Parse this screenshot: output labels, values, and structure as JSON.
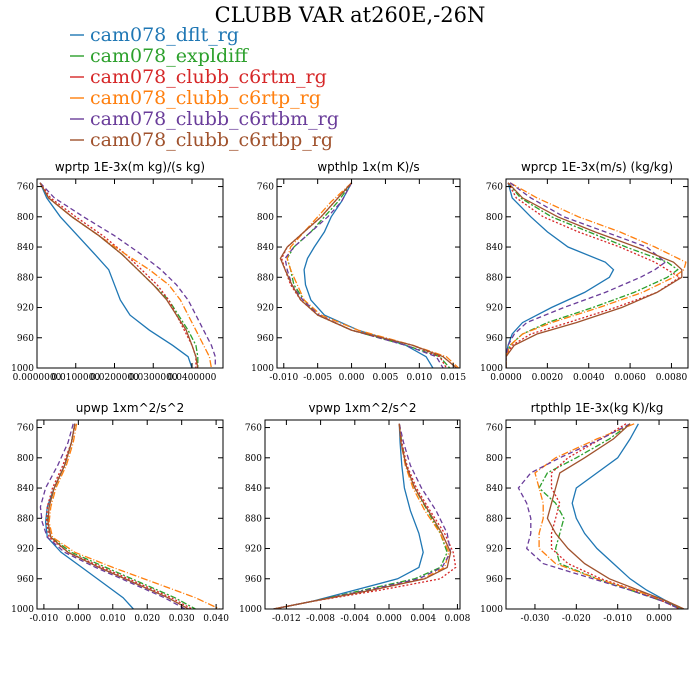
{
  "title": "CLUBB VAR at260E,-26N",
  "legend": [
    {
      "name": "cam078_dflt_rg",
      "color": "#1f77b4",
      "dash": ""
    },
    {
      "name": "cam078_expldiff",
      "color": "#2ca02c",
      "dash": "6,2,2,2"
    },
    {
      "name": "cam078_clubb_c6rtm_rg",
      "color": "#d62728",
      "dash": "2,2"
    },
    {
      "name": "cam078_clubb_c6rtp_rg",
      "color": "#ff7f0e",
      "dash": "7,2,1,2"
    },
    {
      "name": "cam078_clubb_c6rtbm_rg",
      "color": "#6a3d9a",
      "dash": "5,3"
    },
    {
      "name": "cam078_clubb_c6rtbp_rg",
      "color": "#a0522d",
      "dash": ""
    }
  ],
  "chart_data": [
    {
      "type": "line",
      "title": "wprtp  1E-3x(m kg)/(s kg)",
      "xlim": [
        0,
        0.048
      ],
      "ylim": [
        1000,
        750
      ],
      "xticks": [
        0,
        0.01,
        0.02,
        0.03,
        0.04
      ],
      "xticklabels": [
        "0.0000000",
        "0.0100000",
        "0.0200000",
        "0.0300000",
        "0.0400000"
      ],
      "yticks": [
        760,
        800,
        840,
        880,
        920,
        960,
        1000
      ],
      "y": [
        755,
        775,
        800,
        825,
        850,
        870,
        890,
        910,
        930,
        950,
        970,
        985,
        1000
      ],
      "series": [
        {
          "name": "cam078_dflt_rg",
          "values": [
            0.0008,
            0.0025,
            0.006,
            0.0105,
            0.015,
            0.0185,
            0.02,
            0.0215,
            0.024,
            0.029,
            0.035,
            0.039,
            0.04
          ]
        },
        {
          "name": "cam078_expldiff",
          "values": [
            0.0008,
            0.003,
            0.009,
            0.016,
            0.022,
            0.026,
            0.03,
            0.034,
            0.0365,
            0.039,
            0.041,
            0.0415,
            0.0415
          ]
        },
        {
          "name": "cam078_clubb_c6rtm_rg",
          "values": [
            0.0008,
            0.0035,
            0.01,
            0.017,
            0.023,
            0.027,
            0.031,
            0.034,
            0.036,
            0.038,
            0.04,
            0.041,
            0.041
          ]
        },
        {
          "name": "cam078_clubb_c6rtp_rg",
          "values": [
            0.0008,
            0.003,
            0.009,
            0.016,
            0.023,
            0.029,
            0.034,
            0.037,
            0.039,
            0.041,
            0.043,
            0.0445,
            0.045
          ]
        },
        {
          "name": "cam078_clubb_c6rtbm_rg",
          "values": [
            0.0008,
            0.0045,
            0.012,
            0.02,
            0.027,
            0.032,
            0.036,
            0.039,
            0.041,
            0.043,
            0.045,
            0.046,
            0.046
          ]
        },
        {
          "name": "cam078_clubb_c6rtbp_rg",
          "values": [
            0.0008,
            0.003,
            0.009,
            0.016,
            0.022,
            0.026,
            0.03,
            0.0335,
            0.036,
            0.0385,
            0.04,
            0.041,
            0.0415
          ]
        }
      ]
    },
    {
      "type": "line",
      "title": "wpthlp  1x(m K)/s",
      "xlim": [
        -0.011,
        0.016
      ],
      "ylim": [
        1000,
        750
      ],
      "xticks": [
        -0.01,
        -0.005,
        0,
        0.005,
        0.01,
        0.015
      ],
      "xticklabels": [
        "-0.010",
        "-0.005",
        "0.000",
        "0.005",
        "0.010",
        "0.015"
      ],
      "yticks": [
        760,
        800,
        840,
        880,
        920,
        960,
        1000
      ],
      "y": [
        755,
        780,
        800,
        820,
        840,
        855,
        870,
        890,
        910,
        930,
        950,
        970,
        985,
        1000
      ],
      "series": [
        {
          "name": "cam078_dflt_rg",
          "values": [
            0,
            -0.0015,
            -0.003,
            -0.004,
            -0.0055,
            -0.0065,
            -0.007,
            -0.0068,
            -0.006,
            -0.004,
            0.001,
            0.008,
            0.011,
            0.012
          ]
        },
        {
          "name": "cam078_expldiff",
          "values": [
            0,
            -0.002,
            -0.004,
            -0.006,
            -0.0085,
            -0.0095,
            -0.009,
            -0.0085,
            -0.007,
            -0.005,
            0,
            0.008,
            0.013,
            0.0145
          ]
        },
        {
          "name": "cam078_clubb_c6rtm_rg",
          "values": [
            0,
            -0.0025,
            -0.0045,
            -0.007,
            -0.0095,
            -0.0103,
            -0.0098,
            -0.009,
            -0.0075,
            -0.005,
            0,
            0.009,
            0.013,
            0.014
          ]
        },
        {
          "name": "cam078_clubb_c6rtp_rg",
          "values": [
            0,
            -0.003,
            -0.005,
            -0.007,
            -0.009,
            -0.0095,
            -0.009,
            -0.008,
            -0.007,
            -0.0045,
            0.001,
            0.009,
            0.014,
            0.0158
          ]
        },
        {
          "name": "cam078_clubb_c6rtbm_rg",
          "values": [
            0,
            -0.0015,
            -0.0035,
            -0.006,
            -0.0085,
            -0.0098,
            -0.0095,
            -0.0088,
            -0.0072,
            -0.0048,
            0,
            0.008,
            0.0125,
            0.0135
          ]
        },
        {
          "name": "cam078_clubb_c6rtbp_rg",
          "values": [
            0,
            -0.0025,
            -0.0045,
            -0.007,
            -0.0095,
            -0.0105,
            -0.0098,
            -0.0088,
            -0.0075,
            -0.005,
            0,
            0.009,
            0.0135,
            0.0155
          ]
        }
      ]
    },
    {
      "type": "line",
      "title": "wprcp  1E-3x(m/s) (kg/kg)",
      "xlim": [
        0,
        0.0088
      ],
      "ylim": [
        1000,
        750
      ],
      "xticks": [
        0,
        0.002,
        0.004,
        0.006,
        0.008
      ],
      "xticklabels": [
        "0.0000",
        "0.0020",
        "0.0040",
        "0.0060",
        "0.0080"
      ],
      "yticks": [
        760,
        800,
        840,
        880,
        920,
        960,
        1000
      ],
      "y": [
        755,
        775,
        800,
        820,
        840,
        860,
        870,
        880,
        900,
        920,
        940,
        955,
        970,
        985,
        1000
      ],
      "series": [
        {
          "name": "cam078_dflt_rg",
          "values": [
            0.0001,
            0.0003,
            0.0012,
            0.002,
            0.003,
            0.0048,
            0.0052,
            0.005,
            0.0038,
            0.0022,
            0.0008,
            0.0003,
            0.0001,
            0,
            0
          ]
        },
        {
          "name": "cam078_expldiff",
          "values": [
            0.0001,
            0.0007,
            0.0022,
            0.004,
            0.0058,
            0.0078,
            0.0083,
            0.0078,
            0.0062,
            0.0042,
            0.002,
            0.0008,
            0.0002,
            0,
            0
          ]
        },
        {
          "name": "cam078_clubb_c6rtm_rg",
          "values": [
            0.0001,
            0.0005,
            0.0018,
            0.0035,
            0.0055,
            0.0072,
            0.0078,
            0.0084,
            0.0073,
            0.0053,
            0.003,
            0.0012,
            0.0003,
            0,
            0
          ]
        },
        {
          "name": "cam078_clubb_c6rtp_rg",
          "values": [
            0.0002,
            0.0015,
            0.0035,
            0.0055,
            0.0072,
            0.0087,
            0.0086,
            0.0081,
            0.0066,
            0.0045,
            0.0022,
            0.0008,
            0.0002,
            0,
            0
          ]
        },
        {
          "name": "cam078_clubb_c6rtbm_rg",
          "values": [
            0.0002,
            0.0012,
            0.0028,
            0.0048,
            0.0068,
            0.0077,
            0.0072,
            0.0065,
            0.0048,
            0.0028,
            0.001,
            0.0004,
            0.0001,
            0,
            0
          ]
        },
        {
          "name": "cam078_clubb_c6rtbp_rg",
          "values": [
            0.0001,
            0.0008,
            0.0025,
            0.0043,
            0.0063,
            0.0081,
            0.0085,
            0.0085,
            0.0073,
            0.0056,
            0.0034,
            0.0015,
            0.0004,
            0,
            0
          ]
        }
      ]
    },
    {
      "type": "line",
      "title": "upwp  1xm^2/s^2",
      "xlim": [
        -0.012,
        0.042
      ],
      "ylim": [
        1000,
        750
      ],
      "xticks": [
        -0.01,
        0,
        0.01,
        0.02,
        0.03,
        0.04
      ],
      "xticklabels": [
        "-0.010",
        "0.000",
        "0.010",
        "0.020",
        "0.030",
        "0.040"
      ],
      "yticks": [
        760,
        800,
        840,
        880,
        920,
        960,
        1000
      ],
      "y": [
        755,
        780,
        810,
        840,
        865,
        885,
        905,
        925,
        945,
        965,
        985,
        1000
      ],
      "series": [
        {
          "name": "cam078_dflt_rg",
          "values": [
            -0.001,
            -0.002,
            -0.004,
            -0.007,
            -0.009,
            -0.0095,
            -0.009,
            -0.005,
            0.001,
            0.007,
            0.013,
            0.016
          ]
        },
        {
          "name": "cam078_expldiff",
          "values": [
            -0.001,
            -0.002,
            -0.004,
            -0.007,
            -0.0085,
            -0.009,
            -0.008,
            -0.002,
            0.008,
            0.018,
            0.028,
            0.034
          ]
        },
        {
          "name": "cam078_clubb_c6rtm_rg",
          "values": [
            -0.001,
            -0.002,
            -0.0045,
            -0.0075,
            -0.009,
            -0.0092,
            -0.0085,
            -0.003,
            0.007,
            0.017,
            0.027,
            0.033
          ]
        },
        {
          "name": "cam078_clubb_c6rtp_rg",
          "values": [
            -0.0005,
            -0.0015,
            -0.0035,
            -0.0065,
            -0.008,
            -0.0085,
            -0.0075,
            -0.001,
            0.01,
            0.022,
            0.034,
            0.041
          ]
        },
        {
          "name": "cam078_clubb_c6rtbm_rg",
          "values": [
            -0.0015,
            -0.003,
            -0.006,
            -0.0095,
            -0.011,
            -0.0105,
            -0.009,
            -0.004,
            0.005,
            0.015,
            0.025,
            0.031
          ]
        },
        {
          "name": "cam078_clubb_c6rtbp_rg",
          "values": [
            -0.001,
            -0.002,
            -0.004,
            -0.007,
            -0.0085,
            -0.0088,
            -0.008,
            -0.003,
            0.006,
            0.016,
            0.026,
            0.032
          ]
        }
      ]
    },
    {
      "type": "line",
      "title": "vpwp  1xm^2/s^2",
      "xlim": [
        -0.0145,
        0.0083
      ],
      "ylim": [
        1000,
        750
      ],
      "xticks": [
        -0.012,
        -0.008,
        -0.004,
        0,
        0.004,
        0.008
      ],
      "xticklabels": [
        "-0.012",
        "-0.008",
        "-0.004",
        "0.000",
        "0.004",
        "0.008"
      ],
      "yticks": [
        760,
        800,
        840,
        880,
        920,
        960,
        1000
      ],
      "y": [
        755,
        780,
        810,
        840,
        870,
        900,
        925,
        945,
        960,
        975,
        990,
        1000
      ],
      "series": [
        {
          "name": "cam078_dflt_rg",
          "values": [
            0.0012,
            0.0013,
            0.0015,
            0.0018,
            0.0025,
            0.0035,
            0.004,
            0.0035,
            0.001,
            -0.004,
            -0.009,
            -0.0135
          ]
        },
        {
          "name": "cam078_expldiff",
          "values": [
            0.0012,
            0.0015,
            0.002,
            0.003,
            0.0045,
            0.006,
            0.0068,
            0.006,
            0.003,
            -0.003,
            -0.009,
            -0.0135
          ]
        },
        {
          "name": "cam078_clubb_c6rtm_rg",
          "values": [
            0.0012,
            0.0015,
            0.0021,
            0.0032,
            0.0048,
            0.0065,
            0.0075,
            0.0078,
            0.006,
            -0.001,
            -0.009,
            -0.0135
          ]
        },
        {
          "name": "cam078_clubb_c6rtp_rg",
          "values": [
            0.0012,
            0.0014,
            0.0019,
            0.0028,
            0.0042,
            0.006,
            0.007,
            0.0065,
            0.004,
            -0.002,
            -0.009,
            -0.0135
          ]
        },
        {
          "name": "cam078_clubb_c6rtbm_rg",
          "values": [
            0.0012,
            0.0017,
            0.0025,
            0.0038,
            0.0055,
            0.0068,
            0.0072,
            0.0062,
            0.0035,
            -0.0025,
            -0.009,
            -0.0135
          ]
        },
        {
          "name": "cam078_clubb_c6rtbp_rg",
          "values": [
            0.0012,
            0.0014,
            0.002,
            0.003,
            0.0046,
            0.0062,
            0.0072,
            0.0068,
            0.0042,
            -0.002,
            -0.009,
            -0.0135
          ]
        }
      ]
    },
    {
      "type": "line",
      "title": "rtpthlp  1E-3x(kg K)/kg",
      "xlim": [
        -0.037,
        0.007
      ],
      "ylim": [
        1000,
        750
      ],
      "xticks": [
        -0.03,
        -0.02,
        -0.01,
        0
      ],
      "xticklabels": [
        "-0.030",
        "-0.020",
        "-0.010",
        "0.000"
      ],
      "yticks": [
        760,
        800,
        840,
        880,
        920,
        960,
        1000
      ],
      "y": [
        755,
        775,
        800,
        820,
        840,
        860,
        880,
        900,
        920,
        940,
        960,
        975,
        990,
        1000
      ],
      "series": [
        {
          "name": "cam078_dflt_rg",
          "values": [
            -0.005,
            -0.007,
            -0.01,
            -0.015,
            -0.02,
            -0.021,
            -0.02,
            -0.018,
            -0.015,
            -0.011,
            -0.007,
            -0.003,
            0.002,
            0.005
          ]
        },
        {
          "name": "cam078_expldiff",
          "values": [
            -0.007,
            -0.012,
            -0.02,
            -0.027,
            -0.029,
            -0.025,
            -0.023,
            -0.024,
            -0.025,
            -0.024,
            -0.015,
            -0.007,
            0.001,
            0.006
          ]
        },
        {
          "name": "cam078_clubb_c6rtm_rg",
          "values": [
            -0.008,
            -0.014,
            -0.022,
            -0.026,
            -0.026,
            -0.024,
            -0.025,
            -0.026,
            -0.026,
            -0.022,
            -0.014,
            -0.006,
            0.001,
            0.005
          ]
        },
        {
          "name": "cam078_clubb_c6rtp_rg",
          "values": [
            -0.006,
            -0.015,
            -0.025,
            -0.03,
            -0.029,
            -0.028,
            -0.028,
            -0.029,
            -0.029,
            -0.025,
            -0.015,
            -0.006,
            0.002,
            0.006
          ]
        },
        {
          "name": "cam078_clubb_c6rtbm_rg",
          "values": [
            -0.007,
            -0.014,
            -0.024,
            -0.031,
            -0.034,
            -0.032,
            -0.031,
            -0.031,
            -0.032,
            -0.028,
            -0.016,
            -0.007,
            0.001,
            0.005
          ]
        },
        {
          "name": "cam078_clubb_c6rtbp_rg",
          "values": [
            -0.007,
            -0.011,
            -0.018,
            -0.024,
            -0.025,
            -0.026,
            -0.027,
            -0.025,
            -0.022,
            -0.018,
            -0.012,
            -0.005,
            0.002,
            0.006
          ]
        }
      ]
    }
  ]
}
